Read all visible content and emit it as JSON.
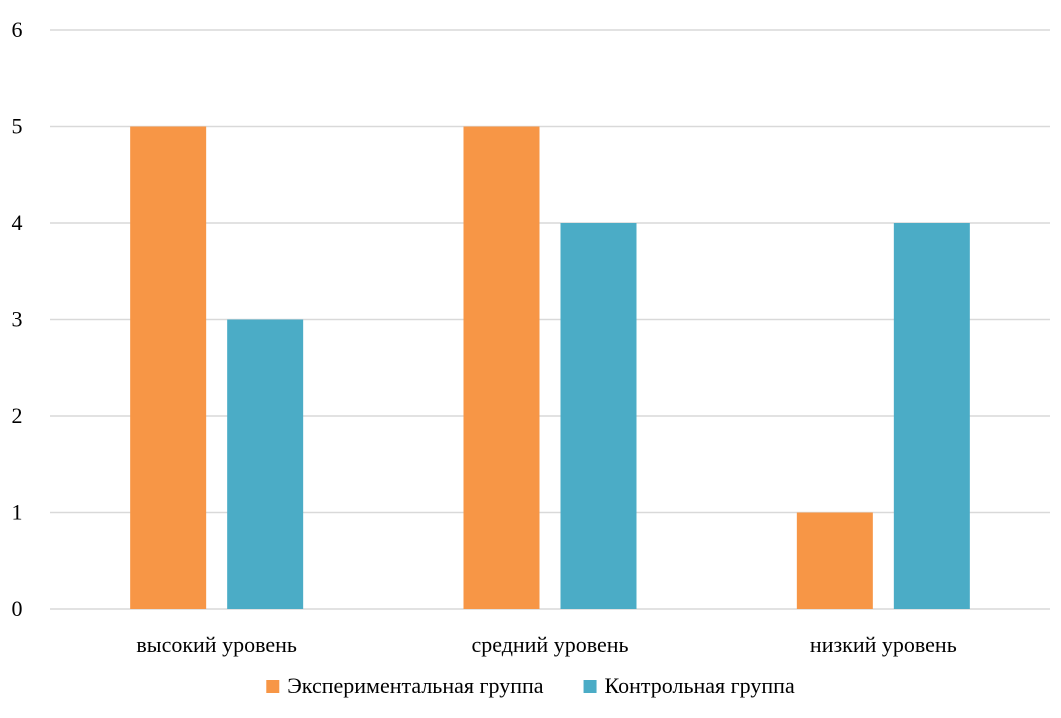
{
  "chart_data": {
    "type": "bar",
    "categories": [
      "высокий уровень",
      "средний уровень",
      "низкий уровень"
    ],
    "series": [
      {
        "name": "Экспериментальная группа",
        "values": [
          5,
          5,
          1
        ],
        "color": "#F79646"
      },
      {
        "name": "Контрольная группа",
        "values": [
          3,
          4,
          4
        ],
        "color": "#4BACC6"
      }
    ],
    "ylim": [
      0,
      6
    ],
    "yticks": [
      "0",
      "1",
      "2",
      "3",
      "4",
      "5",
      "6"
    ],
    "grid": true,
    "gridline_color": "#D9D9D9",
    "legend_position": "bottom"
  }
}
